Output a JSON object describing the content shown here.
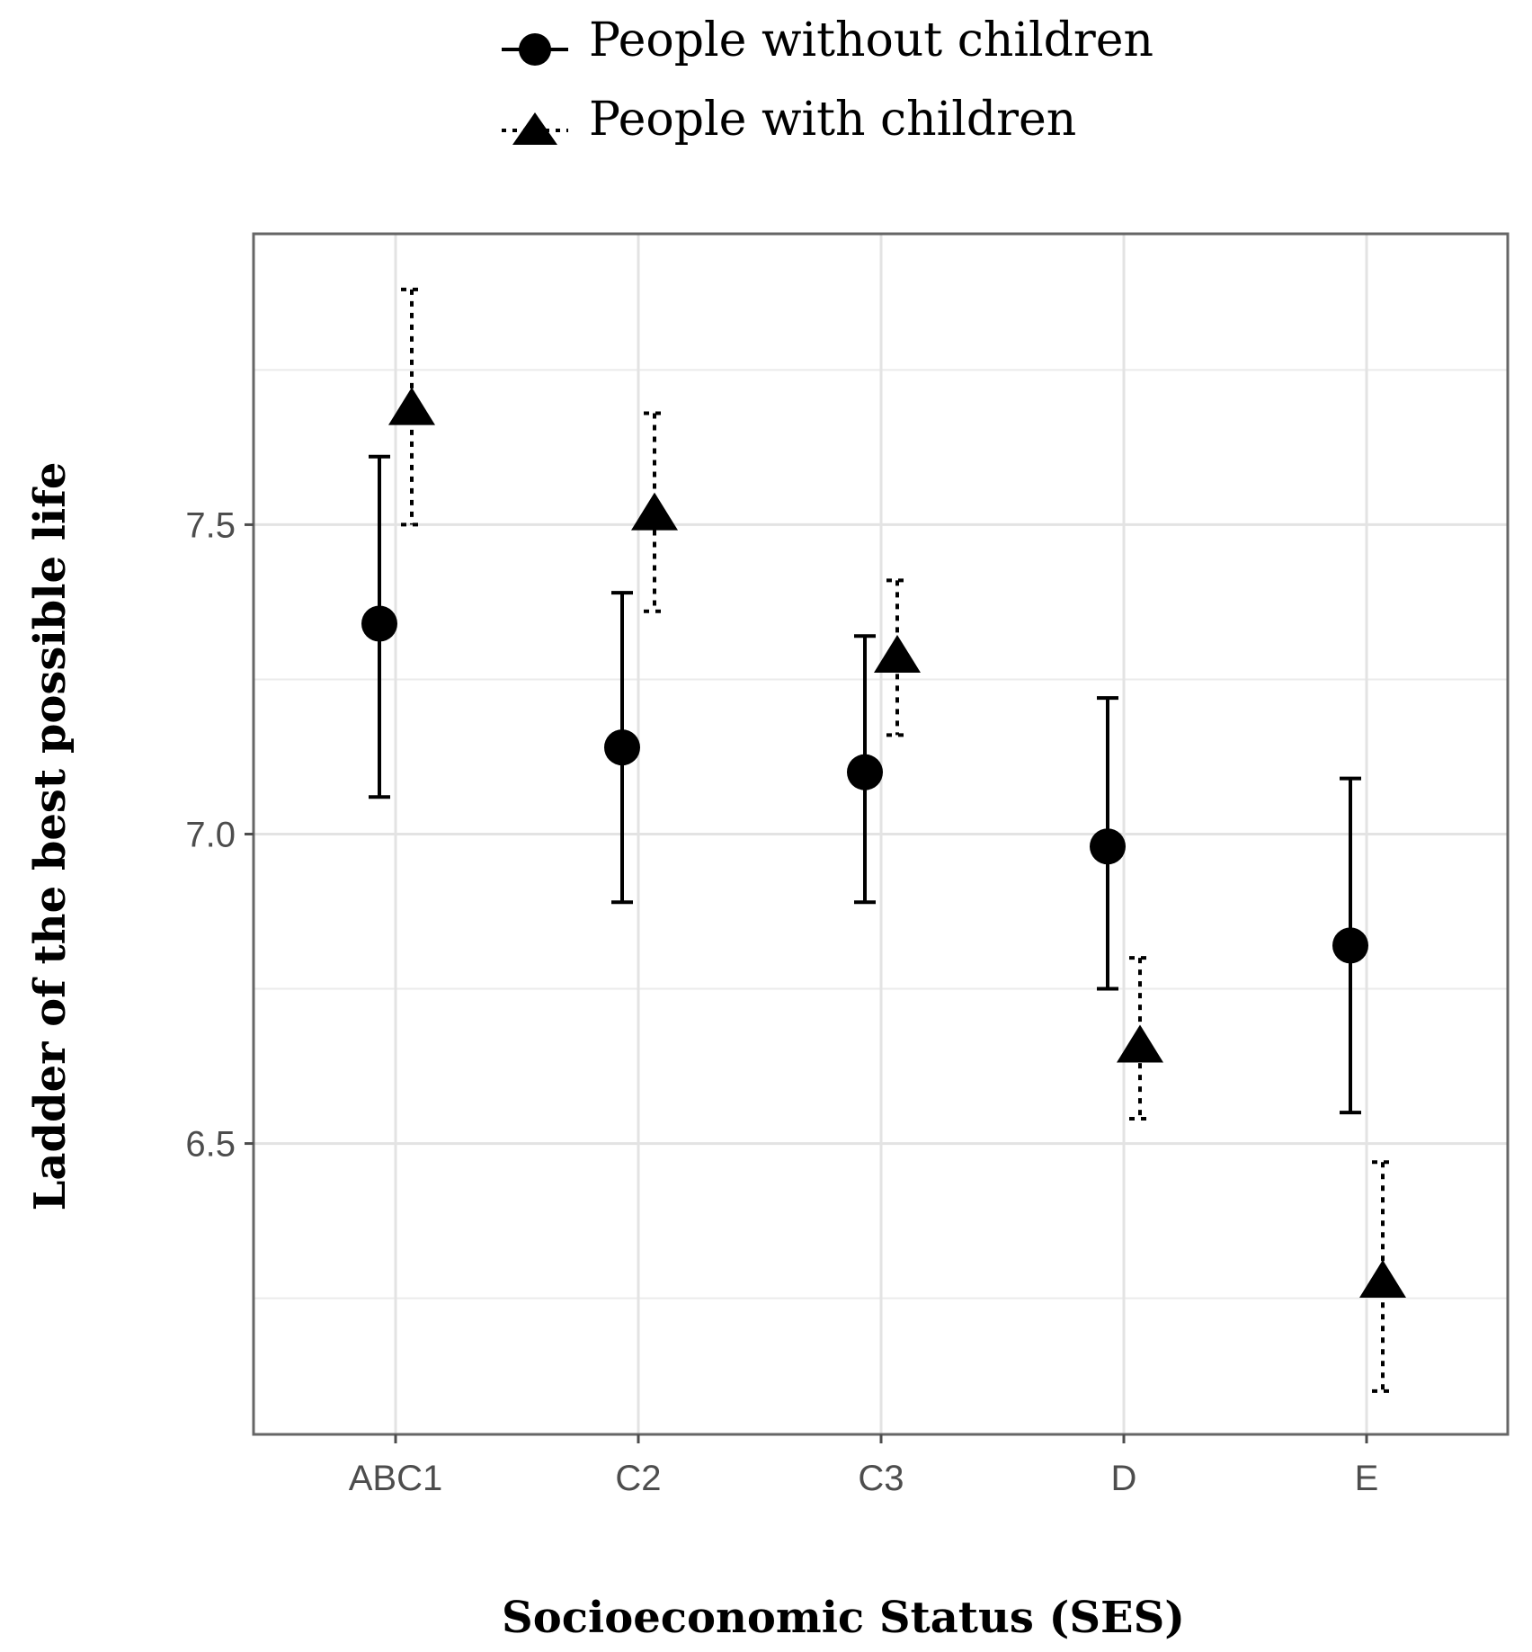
{
  "chart_data": {
    "type": "scatter",
    "subtype": "point-with-error-bars",
    "categories": [
      "ABC1",
      "C2",
      "C3",
      "D",
      "E"
    ],
    "xlabel": "Socioeconomic Status (SES)",
    "ylabel": "Ladder of the best possible life",
    "ylim": [
      6.03,
      7.97
    ],
    "yticks": [
      6.5,
      7.0,
      7.5
    ],
    "ytick_labels": [
      "6.5",
      "7.0",
      "7.5"
    ],
    "minor_yticks": [
      6.25,
      6.75,
      7.25,
      7.75
    ],
    "grid": true,
    "legend": {
      "position": "top-center"
    },
    "series": [
      {
        "name": "People without children",
        "marker": "circle",
        "line_style": "solid",
        "values": [
          7.34,
          7.14,
          7.1,
          6.98,
          6.82
        ],
        "lower": [
          7.06,
          6.89,
          6.89,
          6.75,
          6.55
        ],
        "upper": [
          7.61,
          7.39,
          7.32,
          7.22,
          7.09
        ]
      },
      {
        "name": "People with children",
        "marker": "triangle",
        "line_style": "dotted",
        "values": [
          7.69,
          7.52,
          7.29,
          6.66,
          6.28
        ],
        "lower": [
          7.5,
          7.36,
          7.16,
          6.54,
          6.1
        ],
        "upper": [
          7.88,
          7.68,
          7.41,
          6.8,
          6.47
        ]
      }
    ]
  }
}
